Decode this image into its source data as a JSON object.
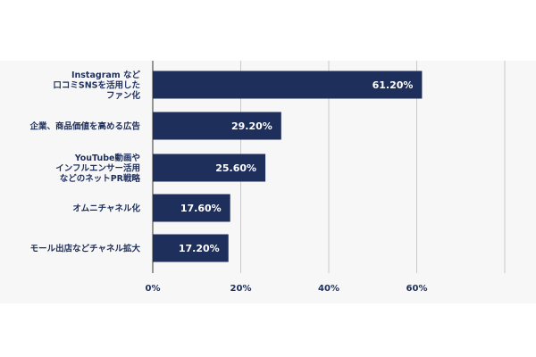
{
  "chart_data": {
    "type": "bar",
    "orientation": "horizontal",
    "categories": [
      [
        "Instagram など",
        "口コミSNSを活用した",
        "ファン化"
      ],
      [
        "企業、商品価値を高める広告"
      ],
      [
        "YouTube動画や",
        "インフルエンサー活用",
        "などのネットPR戦略"
      ],
      [
        "オムニチャネル化"
      ],
      [
        "モール出店などチャネル拡大"
      ]
    ],
    "values": [
      61.2,
      29.2,
      25.6,
      17.6,
      17.2
    ],
    "value_labels": [
      "61.20%",
      "29.20%",
      "25.60%",
      "17.60%",
      "17.20%"
    ],
    "x_ticks": [
      "0%",
      "20%",
      "40%",
      "60%"
    ],
    "x_tick_values": [
      0,
      20,
      40,
      60
    ],
    "xlim": [
      0,
      80
    ],
    "grid": true,
    "colors": {
      "bar": "#1e2f5c",
      "grid": "#c9c9c9",
      "panel": "#f7f7f7"
    }
  }
}
